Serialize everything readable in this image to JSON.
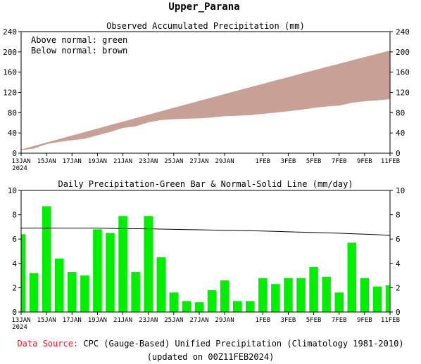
{
  "title": "Upper_Parana",
  "footer": {
    "source_label": "Data Source:",
    "source_text": "CPC (Gauge-Based) Unified Precipitation (Climatology 1981-2010)",
    "updated": "(updated on 00Z11FEB2024)"
  },
  "colors": {
    "accumulated_fill": "#c8a096",
    "daily_bars": "#00ee00",
    "normal_line": "#000000",
    "source_label": "#e02020"
  },
  "x_ticks": [
    "13JAN",
    "15JAN",
    "17JAN",
    "19JAN",
    "21JAN",
    "23JAN",
    "25JAN",
    "27JAN",
    "29JAN",
    "1FEB",
    "3FEB",
    "5FEB",
    "7FEB",
    "9FEB",
    "11FEB"
  ],
  "x_tick_days": [
    0,
    2,
    4,
    6,
    8,
    10,
    12,
    14,
    16,
    19,
    21,
    23,
    25,
    27,
    29
  ],
  "x_year_label": "2024",
  "chart_data": [
    {
      "type": "area",
      "title": "Observed Accumulated Precipitation (mm)",
      "legend": [
        "Above normal: green",
        "Below normal: brown"
      ],
      "legend_position": "top-left",
      "x": [
        "13JAN",
        "14JAN",
        "15JAN",
        "16JAN",
        "17JAN",
        "18JAN",
        "19JAN",
        "20JAN",
        "21JAN",
        "22JAN",
        "23JAN",
        "24JAN",
        "25JAN",
        "26JAN",
        "27JAN",
        "28JAN",
        "29JAN",
        "30JAN",
        "31JAN",
        "1FEB",
        "2FEB",
        "3FEB",
        "4FEB",
        "5FEB",
        "6FEB",
        "7FEB",
        "8FEB",
        "9FEB",
        "10FEB",
        "11FEB"
      ],
      "series": [
        {
          "name": "Observed",
          "values": [
            6.4,
            9.6,
            18.3,
            22.7,
            26.0,
            29.0,
            35.8,
            42.3,
            50.2,
            53.5,
            61.4,
            65.9,
            67.5,
            68.4,
            69.2,
            71.0,
            73.6,
            74.5,
            75.4,
            78.2,
            80.5,
            83.3,
            86.1,
            89.8,
            92.7,
            94.3,
            100.0,
            102.8,
            104.9,
            107.1
          ]
        },
        {
          "name": "Normal",
          "values": [
            6.9,
            13.8,
            20.7,
            27.6,
            34.5,
            41.3,
            48.2,
            55.1,
            61.9,
            68.8,
            75.6,
            82.4,
            89.2,
            96.0,
            102.8,
            109.6,
            116.3,
            123.1,
            129.8,
            136.5,
            143.2,
            149.8,
            156.5,
            163.1,
            169.7,
            176.2,
            182.8,
            189.3,
            195.8,
            202.2
          ]
        }
      ],
      "ylim": [
        0,
        240
      ],
      "yticks": [
        0,
        40,
        80,
        120,
        160,
        200,
        240
      ],
      "grid": false
    },
    {
      "type": "bar",
      "title": "Daily Precipitation-Green Bar & Normal-Solid Line (mm/day)",
      "x": [
        "13JAN",
        "14JAN",
        "15JAN",
        "16JAN",
        "17JAN",
        "18JAN",
        "19JAN",
        "20JAN",
        "21JAN",
        "22JAN",
        "23JAN",
        "24JAN",
        "25JAN",
        "26JAN",
        "27JAN",
        "28JAN",
        "29JAN",
        "30JAN",
        "31JAN",
        "1FEB",
        "2FEB",
        "3FEB",
        "4FEB",
        "5FEB",
        "6FEB",
        "7FEB",
        "8FEB",
        "9FEB",
        "10FEB",
        "11FEB"
      ],
      "series": [
        {
          "name": "Daily Precipitation",
          "type": "bar",
          "values": [
            6.4,
            3.2,
            8.7,
            4.4,
            3.3,
            3.0,
            6.8,
            6.5,
            7.9,
            3.3,
            7.9,
            4.5,
            1.6,
            0.9,
            0.8,
            1.8,
            2.6,
            0.9,
            0.9,
            2.8,
            2.3,
            2.8,
            2.8,
            3.7,
            2.9,
            1.6,
            5.7,
            2.8,
            2.1,
            2.2
          ]
        },
        {
          "name": "Normal",
          "type": "line",
          "values": [
            6.9,
            6.9,
            6.9,
            6.9,
            6.9,
            6.9,
            6.9,
            6.88,
            6.86,
            6.85,
            6.84,
            6.82,
            6.8,
            6.78,
            6.76,
            6.74,
            6.72,
            6.7,
            6.68,
            6.66,
            6.63,
            6.6,
            6.57,
            6.54,
            6.51,
            6.48,
            6.44,
            6.4,
            6.36,
            6.3
          ]
        }
      ],
      "ylim": [
        0,
        10
      ],
      "yticks": [
        0,
        2,
        4,
        6,
        8,
        10
      ],
      "grid": false
    }
  ]
}
